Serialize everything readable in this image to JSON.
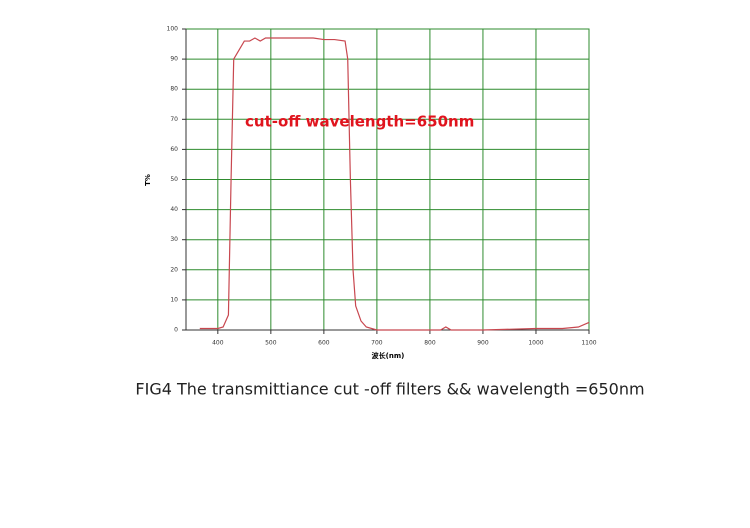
{
  "chart_data": {
    "type": "line",
    "x": [
      366,
      400,
      410,
      420,
      425,
      430,
      440,
      450,
      460,
      470,
      480,
      490,
      500,
      520,
      540,
      560,
      580,
      600,
      620,
      640,
      645,
      650,
      655,
      660,
      670,
      680,
      700,
      750,
      800,
      820,
      830,
      840,
      900,
      1000,
      1050,
      1080,
      1100
    ],
    "values": [
      0.5,
      0.5,
      1,
      5,
      50,
      90,
      93,
      96,
      96,
      97,
      96,
      97,
      97,
      97,
      97,
      97,
      97,
      96.5,
      96.5,
      96,
      90,
      50,
      20,
      8,
      3,
      1,
      0,
      0,
      0,
      0,
      1,
      0,
      0,
      0.5,
      0.5,
      1,
      2.5
    ],
    "color": "#c8474f",
    "xlim": [
      340,
      1100
    ],
    "ylim": [
      0,
      100
    ],
    "xticks": [
      400,
      500,
      600,
      700,
      800,
      900,
      1000,
      1100
    ],
    "yticks": [
      0,
      10,
      20,
      30,
      40,
      50,
      60,
      70,
      80,
      90,
      100
    ],
    "grid": true,
    "grid_color": "#2e8b2e",
    "xlabel": "波长(nm)",
    "ylabel": "T%",
    "annotation": "cut-off wavelength=650nm",
    "caption": "FIG4  The transmittiance cut -off filters && wavelength =650nm"
  }
}
